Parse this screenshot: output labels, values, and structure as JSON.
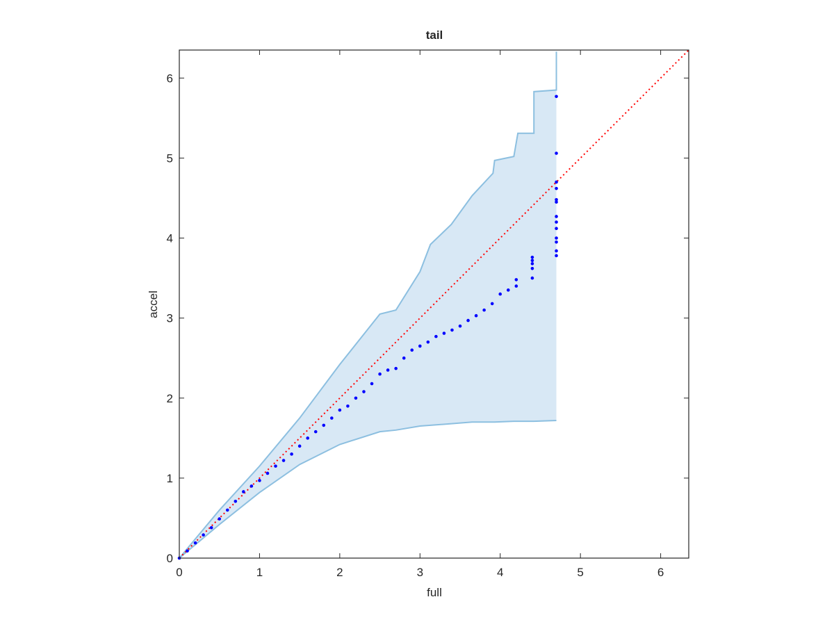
{
  "chart_data": {
    "type": "scatter",
    "title": "tail",
    "xlabel": "full",
    "ylabel": "accel",
    "xlim": [
      0,
      6.35
    ],
    "ylim": [
      0,
      6.35
    ],
    "xticks": [
      0,
      1,
      2,
      3,
      4,
      5,
      6
    ],
    "yticks": [
      0,
      1,
      2,
      3,
      4,
      5,
      6
    ],
    "points": {
      "color": "#0000ff",
      "x": [
        0,
        0.1,
        0.2,
        0.3,
        0.4,
        0.5,
        0.6,
        0.7,
        0.8,
        0.9,
        1.0,
        1.1,
        1.2,
        1.3,
        1.4,
        1.5,
        1.6,
        1.7,
        1.8,
        1.9,
        2.0,
        2.1,
        2.2,
        2.3,
        2.4,
        2.5,
        2.6,
        2.7,
        2.8,
        2.9,
        3.0,
        3.1,
        3.2,
        3.3,
        3.4,
        3.5,
        3.6,
        3.7,
        3.8,
        3.9,
        4.0,
        4.1,
        4.2,
        4.2,
        4.4,
        4.4,
        4.4,
        4.4,
        4.4,
        4.7,
        4.7,
        4.7,
        4.7,
        4.7,
        4.7,
        4.7,
        4.7,
        4.7,
        4.7,
        4.7,
        4.7,
        4.7
      ],
      "y": [
        0,
        0.09,
        0.19,
        0.29,
        0.38,
        0.49,
        0.6,
        0.71,
        0.83,
        0.9,
        0.97,
        1.06,
        1.15,
        1.22,
        1.3,
        1.4,
        1.5,
        1.58,
        1.66,
        1.75,
        1.85,
        1.9,
        2.0,
        2.08,
        2.18,
        2.3,
        2.35,
        2.37,
        2.5,
        2.6,
        2.65,
        2.7,
        2.77,
        2.81,
        2.85,
        2.9,
        2.97,
        3.03,
        3.1,
        3.18,
        3.3,
        3.35,
        3.4,
        3.48,
        3.5,
        3.62,
        3.68,
        3.72,
        3.76,
        3.78,
        3.84,
        3.95,
        4.0,
        4.12,
        4.2,
        4.27,
        4.45,
        4.48,
        4.62,
        4.7,
        5.06,
        5.77
      ]
    },
    "band": {
      "color": "#8cbfe0",
      "fill": "#d8e8f5",
      "x": [
        0,
        0.5,
        1,
        1.5,
        2,
        2.5,
        2.7,
        3,
        3.13,
        3.39,
        3.65,
        3.91,
        3.93,
        4.17,
        4.22,
        4.42,
        4.42,
        4.7,
        4.7
      ],
      "upper": [
        0,
        0.6,
        1.15,
        1.75,
        2.42,
        3.05,
        3.1,
        3.58,
        3.92,
        4.17,
        4.53,
        4.81,
        4.97,
        5.02,
        5.31,
        5.31,
        5.83,
        5.85,
        6.33
      ],
      "lower": [
        0,
        0.42,
        0.82,
        1.17,
        1.42,
        1.58,
        1.6,
        1.65,
        1.66,
        1.68,
        1.7,
        1.7,
        1.7,
        1.71,
        1.71,
        1.71,
        1.71,
        1.72,
        1.72
      ]
    },
    "reference_line": {
      "color": "#ff0000",
      "x": [
        0,
        6.35
      ],
      "y": [
        0,
        6.35
      ]
    }
  }
}
